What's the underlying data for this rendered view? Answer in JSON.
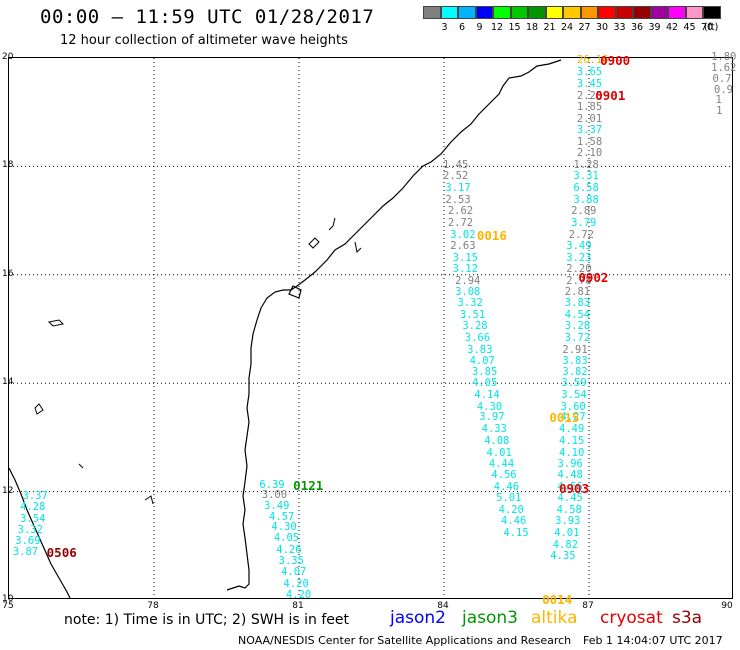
{
  "header": {
    "title": "00:00 – 11:59 UTC 01/28/2017",
    "subtitle": "12 hour collection of altimeter wave heights"
  },
  "legend": {
    "colors": [
      "#808080",
      "#00ffff",
      "#00b4ff",
      "#0000ff",
      "#00ff00",
      "#00c800",
      "#009600",
      "#ffff00",
      "#ffc800",
      "#ff9600",
      "#ff0000",
      "#c80000",
      "#960000",
      "#a000a0",
      "#ff00ff",
      "#ff96c8",
      "#000000"
    ],
    "labels": [
      "3",
      "6",
      "9",
      "12",
      "15",
      "18",
      "21",
      "24",
      "27",
      "30",
      "33",
      "36",
      "39",
      "42",
      "45",
      "70"
    ],
    "unit": "(ft)"
  },
  "map": {
    "lat_range": [
      10,
      20
    ],
    "lon_range": [
      75,
      90
    ],
    "y_ticks": [
      "20",
      "18",
      "16",
      "14",
      "12",
      "10"
    ],
    "x_ticks": [
      "75",
      "78",
      "81",
      "84",
      "87",
      "90"
    ]
  },
  "wave_labels": [
    {
      "text": "26.16",
      "color": "#ffb400",
      "lon": 86.77,
      "lat": 19.94
    },
    {
      "text": "3.65",
      "color": "#00e6e6",
      "lon": 86.77,
      "lat": 19.72
    },
    {
      "text": "3.45",
      "color": "#00e6e6",
      "lon": 86.77,
      "lat": 19.5
    },
    {
      "text": "2.25",
      "color": "#808080",
      "lon": 86.77,
      "lat": 19.28
    },
    {
      "text": "1.85",
      "color": "#808080",
      "lon": 86.77,
      "lat": 19.08
    },
    {
      "text": "2.01",
      "color": "#808080",
      "lon": 86.77,
      "lat": 18.86
    },
    {
      "text": "3.37",
      "color": "#00e6e6",
      "lon": 86.77,
      "lat": 18.65
    },
    {
      "text": "1.58",
      "color": "#808080",
      "lon": 86.77,
      "lat": 18.44
    },
    {
      "text": "2.10",
      "color": "#808080",
      "lon": 86.77,
      "lat": 18.23
    },
    {
      "text": "1.28",
      "color": "#808080",
      "lon": 86.7,
      "lat": 18.0
    },
    {
      "text": "3.31",
      "color": "#00e6e6",
      "lon": 86.7,
      "lat": 17.8
    },
    {
      "text": "6.58",
      "color": "#00e6e6",
      "lon": 86.7,
      "lat": 17.58
    },
    {
      "text": "3.88",
      "color": "#00e6e6",
      "lon": 86.7,
      "lat": 17.36
    },
    {
      "text": "2.89",
      "color": "#808080",
      "lon": 86.65,
      "lat": 17.15
    },
    {
      "text": "3.79",
      "color": "#00e6e6",
      "lon": 86.65,
      "lat": 16.94
    },
    {
      "text": "2.72",
      "color": "#808080",
      "lon": 86.6,
      "lat": 16.72
    },
    {
      "text": "3.49",
      "color": "#00e6e6",
      "lon": 86.55,
      "lat": 16.52
    },
    {
      "text": "3.23",
      "color": "#00e6e6",
      "lon": 86.55,
      "lat": 16.3
    },
    {
      "text": "2.20",
      "color": "#808080",
      "lon": 86.55,
      "lat": 16.09
    },
    {
      "text": "2.78",
      "color": "#808080",
      "lon": 86.55,
      "lat": 15.87
    },
    {
      "text": "2.81",
      "color": "#808080",
      "lon": 86.52,
      "lat": 15.67
    },
    {
      "text": "3.83",
      "color": "#00e6e6",
      "lon": 86.52,
      "lat": 15.46
    },
    {
      "text": "4.54",
      "color": "#00e6e6",
      "lon": 86.52,
      "lat": 15.24
    },
    {
      "text": "3.28",
      "color": "#00e6e6",
      "lon": 86.52,
      "lat": 15.03
    },
    {
      "text": "3.72",
      "color": "#00e6e6",
      "lon": 86.52,
      "lat": 14.82
    },
    {
      "text": "2.91",
      "color": "#808080",
      "lon": 86.47,
      "lat": 14.6
    },
    {
      "text": "3.83",
      "color": "#00e6e6",
      "lon": 86.47,
      "lat": 14.4
    },
    {
      "text": "3.82",
      "color": "#00e6e6",
      "lon": 86.47,
      "lat": 14.19
    },
    {
      "text": "3.59",
      "color": "#00e6e6",
      "lon": 86.45,
      "lat": 13.98
    },
    {
      "text": "3.54",
      "color": "#00e6e6",
      "lon": 86.45,
      "lat": 13.76
    },
    {
      "text": "3.60",
      "color": "#00e6e6",
      "lon": 86.43,
      "lat": 13.55
    },
    {
      "text": "4.27",
      "color": "#00e6e6",
      "lon": 86.43,
      "lat": 13.35
    },
    {
      "text": "4.49",
      "color": "#00e6e6",
      "lon": 86.4,
      "lat": 13.13
    },
    {
      "text": "4.15",
      "color": "#00e6e6",
      "lon": 86.4,
      "lat": 12.92
    },
    {
      "text": "4.10",
      "color": "#00e6e6",
      "lon": 86.4,
      "lat": 12.7
    },
    {
      "text": "3.96",
      "color": "#00e6e6",
      "lon": 86.37,
      "lat": 12.5
    },
    {
      "text": "4.48",
      "color": "#00e6e6",
      "lon": 86.37,
      "lat": 12.28
    },
    {
      "text": "4.56",
      "color": "#00e6e6",
      "lon": 86.37,
      "lat": 12.07
    },
    {
      "text": "4.45",
      "color": "#00e6e6",
      "lon": 86.37,
      "lat": 11.86
    },
    {
      "text": "4.58",
      "color": "#00e6e6",
      "lon": 86.35,
      "lat": 11.65
    },
    {
      "text": "3.93",
      "color": "#00e6e6",
      "lon": 86.32,
      "lat": 11.44
    },
    {
      "text": "4.01",
      "color": "#00e6e6",
      "lon": 86.3,
      "lat": 11.22
    },
    {
      "text": "4.82",
      "color": "#00e6e6",
      "lon": 86.27,
      "lat": 11.0
    },
    {
      "text": "4.35",
      "color": "#00e6e6",
      "lon": 86.22,
      "lat": 10.79
    },
    {
      "text": "1.45",
      "color": "#808080",
      "lon": 84.0,
      "lat": 18.0
    },
    {
      "text": "2.52",
      "color": "#808080",
      "lon": 84.0,
      "lat": 17.8
    },
    {
      "text": "3.17",
      "color": "#00e6e6",
      "lon": 84.05,
      "lat": 17.58
    },
    {
      "text": "2.53",
      "color": "#808080",
      "lon": 84.05,
      "lat": 17.36
    },
    {
      "text": "2.62",
      "color": "#808080",
      "lon": 84.1,
      "lat": 17.15
    },
    {
      "text": "2.72",
      "color": "#808080",
      "lon": 84.1,
      "lat": 16.94
    },
    {
      "text": "3.02",
      "color": "#00e6e6",
      "lon": 84.15,
      "lat": 16.72
    },
    {
      "text": "2.63",
      "color": "#808080",
      "lon": 84.15,
      "lat": 16.52
    },
    {
      "text": "3.15",
      "color": "#00e6e6",
      "lon": 84.2,
      "lat": 16.3
    },
    {
      "text": "3.12",
      "color": "#00e6e6",
      "lon": 84.2,
      "lat": 16.09
    },
    {
      "text": "2.94",
      "color": "#808080",
      "lon": 84.25,
      "lat": 15.87
    },
    {
      "text": "3.08",
      "color": "#00e6e6",
      "lon": 84.25,
      "lat": 15.67
    },
    {
      "text": "3.32",
      "color": "#00e6e6",
      "lon": 84.3,
      "lat": 15.46
    },
    {
      "text": "3.51",
      "color": "#00e6e6",
      "lon": 84.35,
      "lat": 15.24
    },
    {
      "text": "3.28",
      "color": "#00e6e6",
      "lon": 84.4,
      "lat": 15.03
    },
    {
      "text": "3.66",
      "color": "#00e6e6",
      "lon": 84.45,
      "lat": 14.82
    },
    {
      "text": "3.83",
      "color": "#00e6e6",
      "lon": 84.5,
      "lat": 14.6
    },
    {
      "text": "4.07",
      "color": "#00e6e6",
      "lon": 84.55,
      "lat": 14.4
    },
    {
      "text": "3.85",
      "color": "#00e6e6",
      "lon": 84.6,
      "lat": 14.19
    },
    {
      "text": "4.05",
      "color": "#00e6e6",
      "lon": 84.6,
      "lat": 13.98
    },
    {
      "text": "4.14",
      "color": "#00e6e6",
      "lon": 84.65,
      "lat": 13.76
    },
    {
      "text": "4.30",
      "color": "#00e6e6",
      "lon": 84.7,
      "lat": 13.55
    },
    {
      "text": "3.97",
      "color": "#00e6e6",
      "lon": 84.75,
      "lat": 13.35
    },
    {
      "text": "4.33",
      "color": "#00e6e6",
      "lon": 84.8,
      "lat": 13.13
    },
    {
      "text": "4.08",
      "color": "#00e6e6",
      "lon": 84.85,
      "lat": 12.92
    },
    {
      "text": "4.01",
      "color": "#00e6e6",
      "lon": 84.9,
      "lat": 12.7
    },
    {
      "text": "4.44",
      "color": "#00e6e6",
      "lon": 84.95,
      "lat": 12.5
    },
    {
      "text": "4.56",
      "color": "#00e6e6",
      "lon": 85.0,
      "lat": 12.28
    },
    {
      "text": "4.46",
      "color": "#00e6e6",
      "lon": 85.05,
      "lat": 12.07
    },
    {
      "text": "5.01",
      "color": "#00e6e6",
      "lon": 85.1,
      "lat": 11.86
    },
    {
      "text": "4.20",
      "color": "#00e6e6",
      "lon": 85.15,
      "lat": 11.65
    },
    {
      "text": "4.46",
      "color": "#00e6e6",
      "lon": 85.2,
      "lat": 11.44
    },
    {
      "text": "4.15",
      "color": "#00e6e6",
      "lon": 85.25,
      "lat": 11.22
    },
    {
      "text": "6.39",
      "color": "#00e6e6",
      "lon": 80.2,
      "lat": 12.1
    },
    {
      "text": "3.00",
      "color": "#808080",
      "lon": 80.25,
      "lat": 11.92
    },
    {
      "text": "3.49",
      "color": "#00e6e6",
      "lon": 80.3,
      "lat": 11.72
    },
    {
      "text": "4.57",
      "color": "#00e6e6",
      "lon": 80.4,
      "lat": 11.52
    },
    {
      "text": "4.30",
      "color": "#00e6e6",
      "lon": 80.45,
      "lat": 11.32
    },
    {
      "text": "4.05",
      "color": "#00e6e6",
      "lon": 80.5,
      "lat": 11.12
    },
    {
      "text": "4.26",
      "color": "#00e6e6",
      "lon": 80.55,
      "lat": 10.91
    },
    {
      "text": "3.35",
      "color": "#00e6e6",
      "lon": 80.6,
      "lat": 10.7
    },
    {
      "text": "4.07",
      "color": "#00e6e6",
      "lon": 80.65,
      "lat": 10.49
    },
    {
      "text": "4.20",
      "color": "#00e6e6",
      "lon": 80.7,
      "lat": 10.28
    },
    {
      "text": "4.20",
      "color": "#00e6e6",
      "lon": 80.75,
      "lat": 10.07
    },
    {
      "text": "3.37",
      "color": "#00e6e6",
      "lon": 75.3,
      "lat": 11.9
    },
    {
      "text": "4.28",
      "color": "#00e6e6",
      "lon": 75.25,
      "lat": 11.69
    },
    {
      "text": "3.54",
      "color": "#00e6e6",
      "lon": 75.25,
      "lat": 11.48
    },
    {
      "text": "3.32",
      "color": "#00e6e6",
      "lon": 75.2,
      "lat": 11.28
    },
    {
      "text": "3.69",
      "color": "#00e6e6",
      "lon": 75.15,
      "lat": 11.07
    },
    {
      "text": "3.87",
      "color": "#00e6e6",
      "lon": 75.1,
      "lat": 10.86
    },
    {
      "text": "1.80",
      "color": "#808080",
      "lon": 89.6,
      "lat": 20.0
    },
    {
      "text": "1.62",
      "color": "#808080",
      "lon": 89.6,
      "lat": 19.8
    },
    {
      "text": "0.7",
      "color": "#808080",
      "lon": 89.7,
      "lat": 19.6
    },
    {
      "text": "0.9",
      "color": "#808080",
      "lon": 89.8,
      "lat": 19.4
    },
    {
      "text": "1",
      "color": "#808080",
      "lon": 89.9,
      "lat": 19.2
    },
    {
      "text": "1",
      "color": "#808080",
      "lon": 89.95,
      "lat": 19.0
    }
  ],
  "pass_labels": [
    {
      "text": "0900",
      "color": "#e60000",
      "lon": 87.25,
      "lat": 19.94
    },
    {
      "text": "0901",
      "color": "#e60000",
      "lon": 87.15,
      "lat": 19.3
    },
    {
      "text": "0902",
      "color": "#e60000",
      "lon": 86.8,
      "lat": 15.94
    },
    {
      "text": "0903",
      "color": "#e60000",
      "lon": 86.4,
      "lat": 12.05
    },
    {
      "text": "0016",
      "color": "#ffb400",
      "lon": 84.7,
      "lat": 16.72
    },
    {
      "text": "0015",
      "color": "#ffb400",
      "lon": 86.2,
      "lat": 13.35
    },
    {
      "text": "0014",
      "color": "#ffb400",
      "lon": 86.05,
      "lat": 10.0
    },
    {
      "text": "0121",
      "color": "#009600",
      "lon": 80.9,
      "lat": 12.1
    },
    {
      "text": "0506",
      "color": "#960000",
      "lon": 75.8,
      "lat": 10.86
    }
  ],
  "note": "note: 1) Time is in UTC; 2) SWH is in feet",
  "satellites": [
    {
      "name": "jason2",
      "color": "#0000ff"
    },
    {
      "name": "jason3",
      "color": "#009600"
    },
    {
      "name": "altika",
      "color": "#ffb400"
    },
    {
      "name": "cryosat",
      "color": "#e60000"
    },
    {
      "name": "s3a",
      "color": "#960000"
    }
  ],
  "footer": {
    "left": "NOAA/NESDIS Center for Satellite Applications and Research",
    "right": "Feb  1 14:04:07 UTC 2017"
  }
}
